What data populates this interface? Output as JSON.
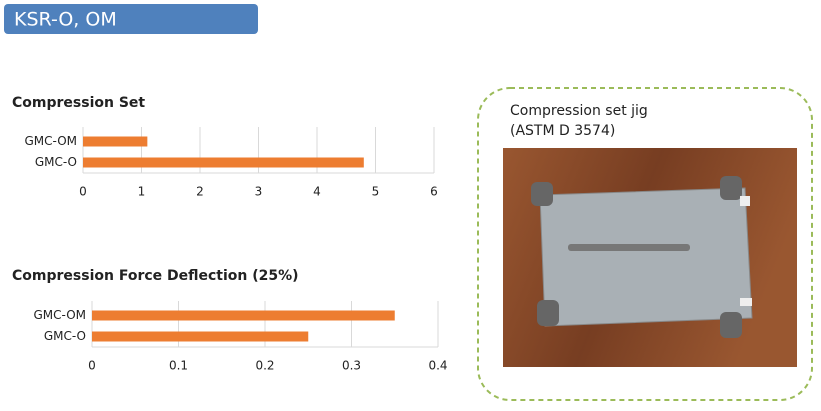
{
  "header": "KSR-O, OM",
  "photo_caption": [
    "Compression set jig",
    "(ASTM D 3574)"
  ],
  "chart_data": [
    {
      "type": "hbar",
      "title": "Compression Set",
      "categories": [
        "GMC-OM",
        "GMC-O"
      ],
      "values": [
        1.1,
        4.8
      ],
      "color": "#ed7d31",
      "xlim": [
        0,
        6
      ],
      "xticks": [
        0,
        1,
        2,
        3,
        4,
        5,
        6
      ],
      "grid": true
    },
    {
      "type": "hbar",
      "title": "Compression Force Deflection (25%)",
      "categories": [
        "GMC-OM",
        "GMC-O"
      ],
      "values": [
        0.35,
        0.25
      ],
      "color": "#ed7d31",
      "xlim": [
        0,
        0.4
      ],
      "xticks": [
        0,
        0.1,
        0.2,
        0.3,
        0.4
      ],
      "grid": true
    }
  ]
}
